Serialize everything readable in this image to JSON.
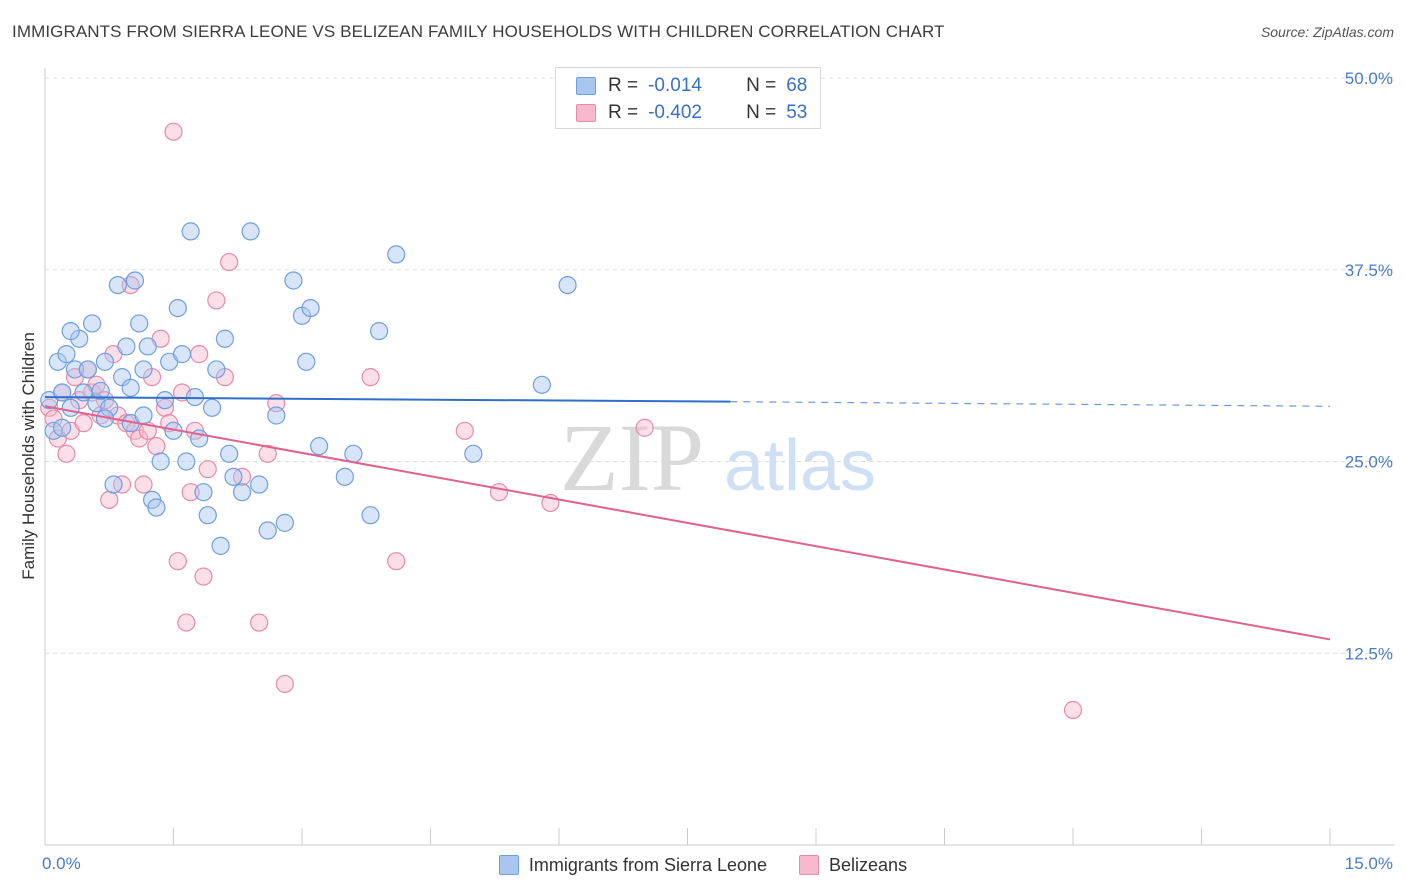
{
  "title": "IMMIGRANTS FROM SIERRA LEONE VS BELIZEAN FAMILY HOUSEHOLDS WITH CHILDREN CORRELATION CHART",
  "source": "Source: ZipAtlas.com",
  "watermark": {
    "zip": "ZIP",
    "atlas": "atlas"
  },
  "colors": {
    "blue_fill": "#a9c6ef",
    "blue_stroke": "#6f9fe0",
    "blue_line": "#2f6fc9",
    "pink_fill": "#f5b8cd",
    "pink_stroke": "#e88aaa",
    "pink_line": "#e0608e",
    "grid": "#dcdcdc",
    "tick_text": "#4a7cc9"
  },
  "legend_top": {
    "rows": [
      {
        "r_label": "R =",
        "r_value": "-0.014",
        "n_label": "N =",
        "n_value": "68"
      },
      {
        "r_label": "R =",
        "r_value": "-0.402",
        "n_label": "N =",
        "n_value": "53"
      }
    ]
  },
  "legend_bottom": {
    "series_a": "Immigrants from Sierra Leone",
    "series_b": "Belizeans"
  },
  "chart_data": {
    "type": "scatter",
    "title": "IMMIGRANTS FROM SIERRA LEONE VS BELIZEAN FAMILY HOUSEHOLDS WITH CHILDREN CORRELATION CHART",
    "xlabel": "",
    "ylabel": "Family Households with Children",
    "xlim": [
      0,
      15
    ],
    "ylim": [
      0,
      50
    ],
    "x_tick_labels": [
      "0.0%",
      "15.0%"
    ],
    "y_ticks": [
      12.5,
      25.0,
      37.5,
      50.0
    ],
    "y_tick_labels": [
      "12.5%",
      "25.0%",
      "37.5%",
      "50.0%"
    ],
    "series": [
      {
        "name": "Immigrants from Sierra Leone",
        "color": "blue",
        "R": -0.014,
        "N": 68,
        "trend": {
          "x0": 0.0,
          "y0": 29.2,
          "x1": 8.0,
          "y1": 28.9,
          "dash_to_x": 15.0,
          "dash_y": 28.6
        },
        "points": [
          [
            0.05,
            29.0
          ],
          [
            0.1,
            27.0
          ],
          [
            0.15,
            31.5
          ],
          [
            0.2,
            29.5
          ],
          [
            0.25,
            32.0
          ],
          [
            0.3,
            28.5
          ],
          [
            0.35,
            31.0
          ],
          [
            0.4,
            33.0
          ],
          [
            0.45,
            29.5
          ],
          [
            0.5,
            31.0
          ],
          [
            0.55,
            34.0
          ],
          [
            0.6,
            28.8
          ],
          [
            0.65,
            29.6
          ],
          [
            0.7,
            31.5
          ],
          [
            0.75,
            28.5
          ],
          [
            0.8,
            23.5
          ],
          [
            0.85,
            36.5
          ],
          [
            0.9,
            30.5
          ],
          [
            0.95,
            32.5
          ],
          [
            1.0,
            27.5
          ],
          [
            1.05,
            36.8
          ],
          [
            1.1,
            34.0
          ],
          [
            1.15,
            28.0
          ],
          [
            1.2,
            32.5
          ],
          [
            1.25,
            22.5
          ],
          [
            1.3,
            22.0
          ],
          [
            1.35,
            25.0
          ],
          [
            1.4,
            29.0
          ],
          [
            1.45,
            31.5
          ],
          [
            1.5,
            27.0
          ],
          [
            1.55,
            35.0
          ],
          [
            1.6,
            32.0
          ],
          [
            1.65,
            25.0
          ],
          [
            1.7,
            40.0
          ],
          [
            1.75,
            29.2
          ],
          [
            1.8,
            26.5
          ],
          [
            1.85,
            23.0
          ],
          [
            1.9,
            21.5
          ],
          [
            1.95,
            28.5
          ],
          [
            2.0,
            31.0
          ],
          [
            2.05,
            19.5
          ],
          [
            2.1,
            33.0
          ],
          [
            2.15,
            25.5
          ],
          [
            2.2,
            24.0
          ],
          [
            2.3,
            23.0
          ],
          [
            2.4,
            40.0
          ],
          [
            2.5,
            23.5
          ],
          [
            2.6,
            20.5
          ],
          [
            2.7,
            28.0
          ],
          [
            2.8,
            21.0
          ],
          [
            2.9,
            36.8
          ],
          [
            3.0,
            34.5
          ],
          [
            3.05,
            31.5
          ],
          [
            3.1,
            35.0
          ],
          [
            3.2,
            26.0
          ],
          [
            3.5,
            24.0
          ],
          [
            3.6,
            25.5
          ],
          [
            3.8,
            21.5
          ],
          [
            3.9,
            33.5
          ],
          [
            4.1,
            38.5
          ],
          [
            5.0,
            25.5
          ],
          [
            5.8,
            30.0
          ],
          [
            6.1,
            36.5
          ],
          [
            1.15,
            31.0
          ],
          [
            0.7,
            27.8
          ],
          [
            0.3,
            33.5
          ],
          [
            0.2,
            27.2
          ],
          [
            1.0,
            29.8
          ]
        ]
      },
      {
        "name": "Belizeans",
        "color": "pink",
        "R": -0.402,
        "N": 53,
        "trend": {
          "x0": 0.0,
          "y0": 28.6,
          "x1": 15.0,
          "y1": 13.4
        },
        "points": [
          [
            0.05,
            28.5
          ],
          [
            0.1,
            27.8
          ],
          [
            0.15,
            26.5
          ],
          [
            0.2,
            29.5
          ],
          [
            0.25,
            25.5
          ],
          [
            0.3,
            27.0
          ],
          [
            0.35,
            30.5
          ],
          [
            0.4,
            29.0
          ],
          [
            0.45,
            27.5
          ],
          [
            0.5,
            31.0
          ],
          [
            0.55,
            29.5
          ],
          [
            0.6,
            30.0
          ],
          [
            0.65,
            28.0
          ],
          [
            0.7,
            29.0
          ],
          [
            0.75,
            22.5
          ],
          [
            0.8,
            32.0
          ],
          [
            0.85,
            28.0
          ],
          [
            0.9,
            23.5
          ],
          [
            0.95,
            27.5
          ],
          [
            1.0,
            36.5
          ],
          [
            1.05,
            27.0
          ],
          [
            1.1,
            26.5
          ],
          [
            1.15,
            23.5
          ],
          [
            1.2,
            27.0
          ],
          [
            1.25,
            30.5
          ],
          [
            1.3,
            26.0
          ],
          [
            1.35,
            33.0
          ],
          [
            1.4,
            28.5
          ],
          [
            1.45,
            27.5
          ],
          [
            1.5,
            46.5
          ],
          [
            1.55,
            18.5
          ],
          [
            1.6,
            29.5
          ],
          [
            1.65,
            14.5
          ],
          [
            1.7,
            23.0
          ],
          [
            1.75,
            27.0
          ],
          [
            1.8,
            32.0
          ],
          [
            1.85,
            17.5
          ],
          [
            1.9,
            24.5
          ],
          [
            2.0,
            35.5
          ],
          [
            2.1,
            30.5
          ],
          [
            2.15,
            38.0
          ],
          [
            2.3,
            24.0
          ],
          [
            2.5,
            14.5
          ],
          [
            2.6,
            25.5
          ],
          [
            2.7,
            28.8
          ],
          [
            2.8,
            10.5
          ],
          [
            3.8,
            30.5
          ],
          [
            4.1,
            18.5
          ],
          [
            4.9,
            27.0
          ],
          [
            5.3,
            23.0
          ],
          [
            5.9,
            22.3
          ],
          [
            7.0,
            27.2
          ],
          [
            12.0,
            8.8
          ]
        ]
      }
    ]
  }
}
